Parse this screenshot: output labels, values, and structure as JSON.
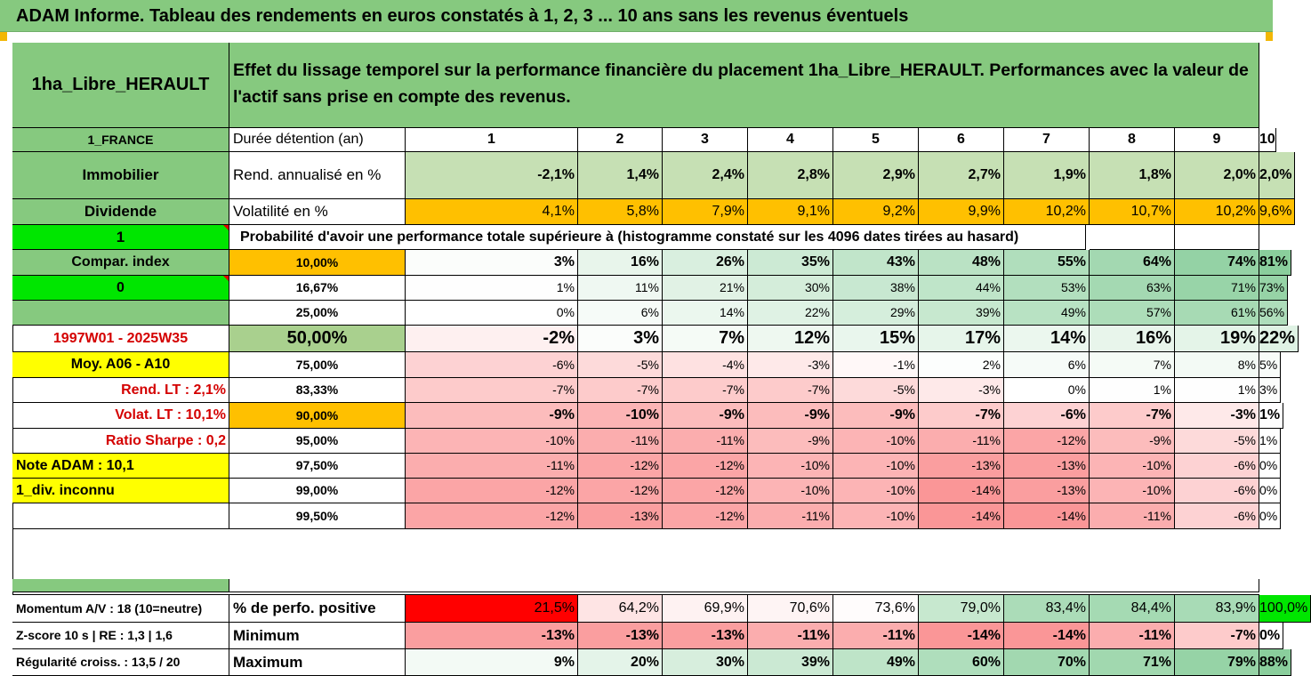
{
  "banner": "ADAM Informe. Tableau des rendements en euros constatés à 1, 2, 3 ... 10 ans sans les revenus éventuels",
  "title": {
    "asset": "1ha_Libre_HERAULT",
    "description": "Effet du lissage temporel sur la performance financière du placement 1ha_Libre_HERAULT. Performances avec la valeur de l'actif sans prise en compte des revenus."
  },
  "left": {
    "country": "1_FRANCE",
    "category": "Immobilier",
    "dividend": "Dividende",
    "flag1": "1",
    "compar": "Compar. index",
    "flag0": "0",
    "period": "1997W01 - 2025W35",
    "moy": "Moy. A06 - A10",
    "rend_lt": "Rend. LT :    2,1%",
    "volat_lt": "Volat. LT :   10,1%",
    "sharpe": "Ratio Sharpe :    0,2",
    "note": "Note ADAM : 10,1",
    "div": "1_div. inconnu"
  },
  "header_row": {
    "label": "Durée détention (an)",
    "years": [
      "1",
      "2",
      "3",
      "4",
      "5",
      "6",
      "7",
      "8",
      "9",
      "10"
    ]
  },
  "rend_row": {
    "label": "Rend. annualisé en %",
    "values": [
      "-2,1%",
      "1,4%",
      "2,4%",
      "2,8%",
      "2,9%",
      "2,7%",
      "1,9%",
      "1,8%",
      "2,0%",
      "2,0%"
    ]
  },
  "vol_row": {
    "label": "Volatilité en %",
    "values": [
      "4,1%",
      "5,8%",
      "7,9%",
      "9,1%",
      "9,2%",
      "9,9%",
      "10,2%",
      "10,7%",
      "10,2%",
      "9,6%"
    ]
  },
  "prob_title": "Probabilité d'avoir une performance totale supérieure à (histogramme constaté sur les 4096 dates tirées au hasard)",
  "quantiles": [
    {
      "label": "10,00%",
      "values": [
        "3%",
        "16%",
        "26%",
        "35%",
        "43%",
        "48%",
        "55%",
        "64%",
        "74%",
        "81%"
      ]
    },
    {
      "label": "16,67%",
      "values": [
        "1%",
        "11%",
        "21%",
        "30%",
        "38%",
        "44%",
        "53%",
        "63%",
        "71%",
        "73%"
      ]
    },
    {
      "label": "25,00%",
      "values": [
        "0%",
        "6%",
        "14%",
        "22%",
        "29%",
        "39%",
        "49%",
        "57%",
        "61%",
        "56%"
      ]
    },
    {
      "label": "50,00%",
      "values": [
        "-2%",
        "3%",
        "7%",
        "12%",
        "15%",
        "17%",
        "14%",
        "16%",
        "19%",
        "22%"
      ]
    },
    {
      "label": "75,00%",
      "values": [
        "-6%",
        "-5%",
        "-4%",
        "-3%",
        "-1%",
        "2%",
        "6%",
        "7%",
        "8%",
        "5%"
      ]
    },
    {
      "label": "83,33%",
      "values": [
        "-7%",
        "-7%",
        "-7%",
        "-7%",
        "-5%",
        "-3%",
        "0%",
        "1%",
        "1%",
        "3%"
      ]
    },
    {
      "label": "90,00%",
      "values": [
        "-9%",
        "-10%",
        "-9%",
        "-9%",
        "-9%",
        "-7%",
        "-6%",
        "-7%",
        "-3%",
        "1%"
      ]
    },
    {
      "label": "95,00%",
      "values": [
        "-10%",
        "-11%",
        "-11%",
        "-9%",
        "-10%",
        "-11%",
        "-12%",
        "-9%",
        "-5%",
        "1%"
      ]
    },
    {
      "label": "97,50%",
      "values": [
        "-11%",
        "-12%",
        "-12%",
        "-10%",
        "-10%",
        "-13%",
        "-13%",
        "-10%",
        "-6%",
        "0%"
      ]
    },
    {
      "label": "99,00%",
      "values": [
        "-12%",
        "-12%",
        "-12%",
        "-10%",
        "-10%",
        "-14%",
        "-13%",
        "-10%",
        "-6%",
        "0%"
      ]
    },
    {
      "label": "99,50%",
      "values": [
        "-12%",
        "-13%",
        "-12%",
        "-11%",
        "-10%",
        "-14%",
        "-14%",
        "-11%",
        "-6%",
        "0%"
      ]
    }
  ],
  "stats": [
    {
      "left": "Momentum A/V : 18 (10=neutre)",
      "label": "% de perfo. positive",
      "values": [
        "21,5%",
        "64,2%",
        "69,9%",
        "70,6%",
        "73,6%",
        "79,0%",
        "83,4%",
        "84,4%",
        "83,9%",
        "100,0%"
      ]
    },
    {
      "left": "Z-score 10 s  |  RE : 1,3  |  1,6",
      "label": "Minimum",
      "values": [
        "-13%",
        "-13%",
        "-13%",
        "-11%",
        "-11%",
        "-14%",
        "-14%",
        "-11%",
        "-7%",
        "0%"
      ]
    },
    {
      "left": "Régularité croiss. : 13,5 / 20",
      "label": "Maximum",
      "values": [
        "9%",
        "20%",
        "30%",
        "39%",
        "49%",
        "60%",
        "70%",
        "71%",
        "79%",
        "88%"
      ]
    }
  ],
  "colors": {
    "header_green": "#86c97f",
    "flag_lime": "#00e600",
    "highlight_yellow": "#ffff00",
    "volatility_orange": "#ffc000",
    "rend_green": "#c6e0b4",
    "positive_green": "#63be7b",
    "negative_red": "#f8696b",
    "strong_red": "#ff0000",
    "strong_green": "#00ff00"
  }
}
